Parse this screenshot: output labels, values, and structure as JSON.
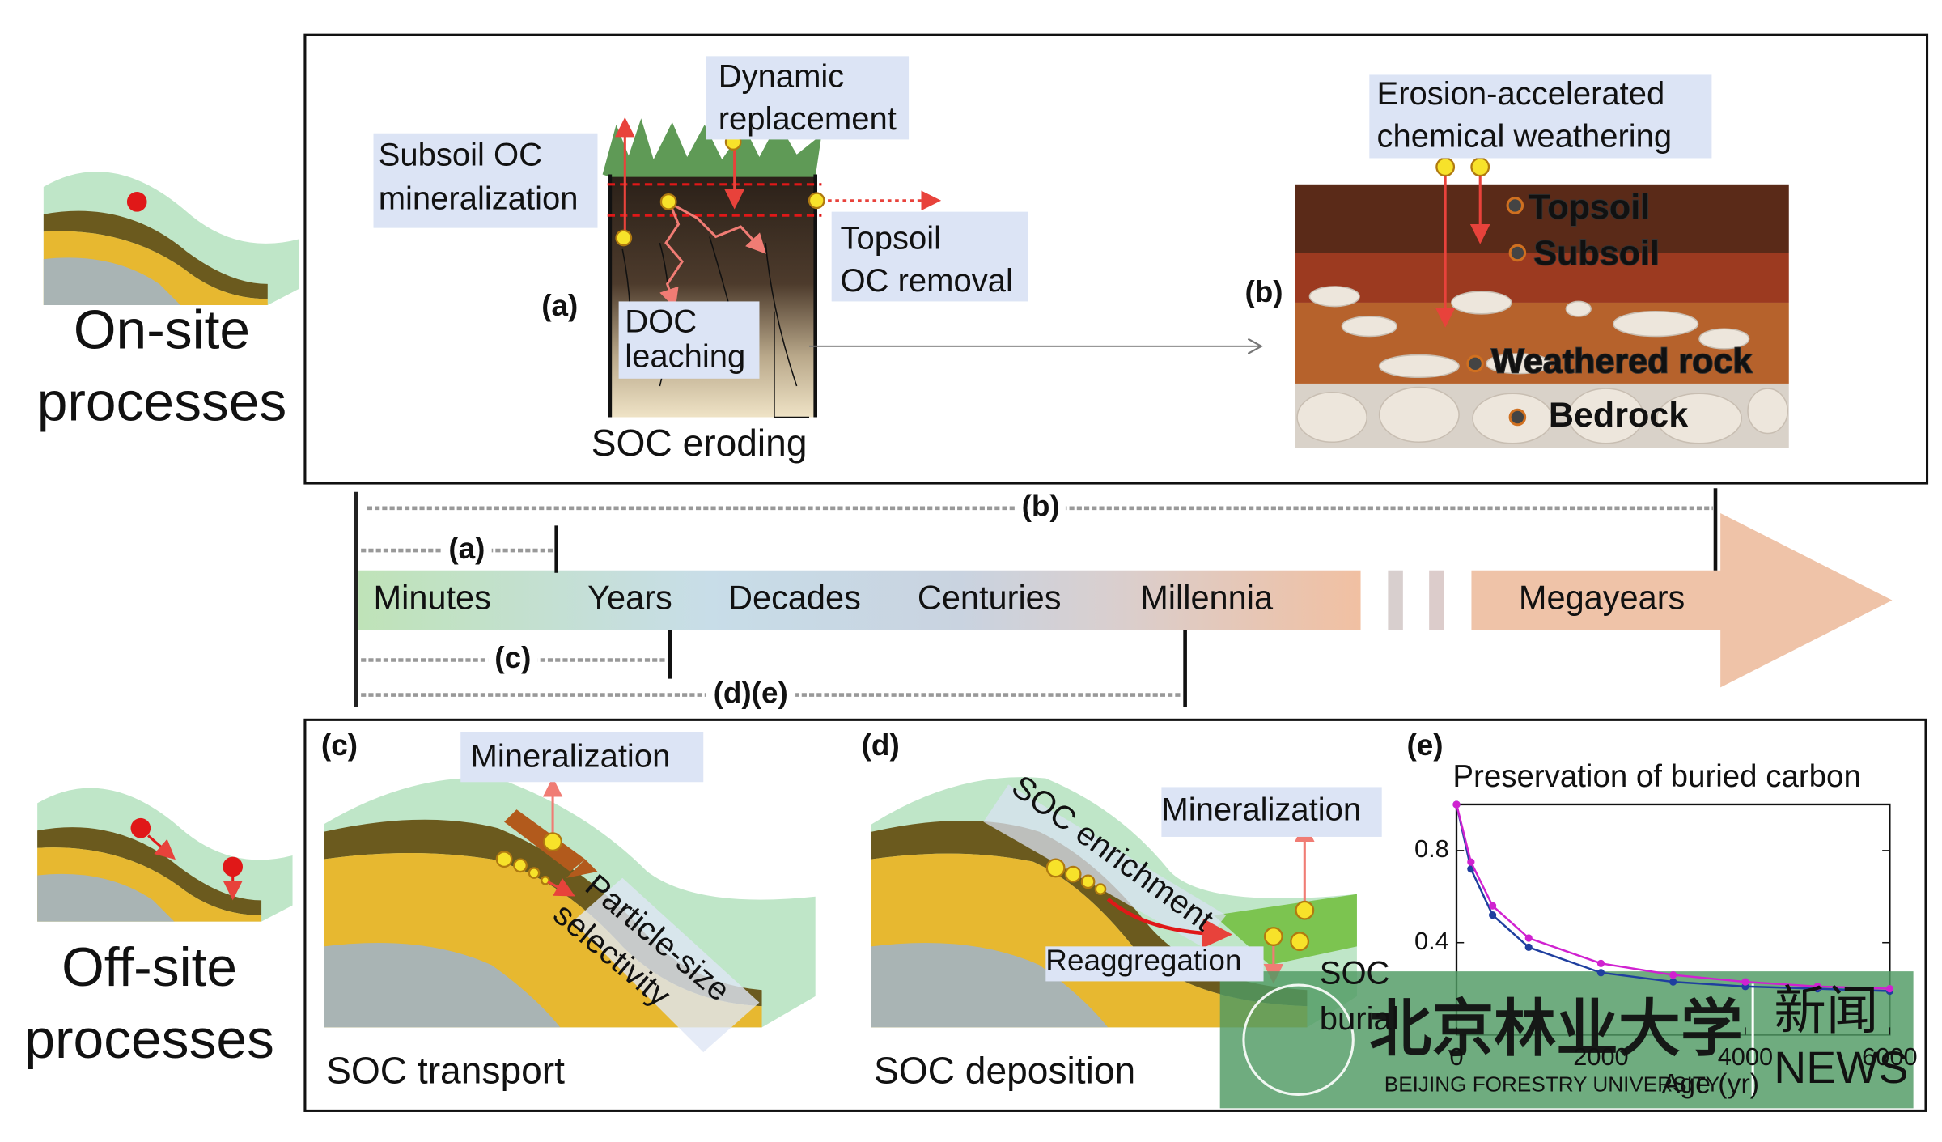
{
  "side_labels": {
    "onsite": [
      "On-site",
      "processes"
    ],
    "offsite": [
      "Off-site",
      "processes"
    ]
  },
  "panel_a": {
    "label": "(a)",
    "subsoil_mineralization": [
      "Subsoil OC",
      "mineralization"
    ],
    "dynamic_replacement": [
      "Dynamic",
      "replacement"
    ],
    "topsoil_removal": [
      "Topsoil",
      "OC removal"
    ],
    "doc_leaching": [
      "DOC",
      "leaching"
    ],
    "caption": "SOC eroding"
  },
  "panel_b": {
    "label": "(b)",
    "title": [
      "Erosion-accelerated",
      "chemical weathering"
    ],
    "layers": [
      "Topsoil",
      "Subsoil",
      "Weathered rock",
      "Bedrock"
    ]
  },
  "timeline": {
    "scales": [
      "Minutes",
      "Years",
      "Decades",
      "Centuries",
      "Millennia",
      "Megayears"
    ],
    "ranges": [
      "(b)",
      "(a)",
      "(c)",
      "(d)(e)"
    ]
  },
  "panel_c": {
    "label": "(c)",
    "mineralization": "Mineralization",
    "selectivity": [
      "Particle-size",
      "selectivity"
    ],
    "caption": "SOC transport"
  },
  "panel_d": {
    "label": "(d)",
    "enrichment": "SOC enrichment",
    "mineralization": "Mineralization",
    "reaggregation": "Reaggregation",
    "burial": [
      "SOC",
      "burial"
    ],
    "caption": "SOC deposition"
  },
  "panel_e": {
    "label": "(e)",
    "chart": {
      "type": "line",
      "title": "Preservation of buried carbon",
      "x_label": "Age (yr)",
      "xlim": [
        0,
        6000
      ],
      "ylim": [
        0,
        1
      ],
      "xticks": [
        0,
        2000,
        4000,
        6000
      ],
      "yticks": [
        0.4,
        0.8
      ],
      "x": [
        0,
        200,
        500,
        1000,
        2000,
        3000,
        4000,
        5000,
        6000
      ],
      "series": [
        {
          "color": "#1f3f9f",
          "values": [
            1.0,
            0.72,
            0.52,
            0.38,
            0.27,
            0.23,
            0.21,
            0.2,
            0.19
          ]
        },
        {
          "color": "#d022d0",
          "values": [
            1.0,
            0.75,
            0.56,
            0.42,
            0.31,
            0.26,
            0.23,
            0.21,
            0.2
          ]
        }
      ]
    }
  },
  "watermark": {
    "name_cn": "北京林业大学",
    "news_cn": "新闻",
    "name_en": "BEIJING FORESTRY UNIVERSITY",
    "news_en": "NEWS"
  }
}
